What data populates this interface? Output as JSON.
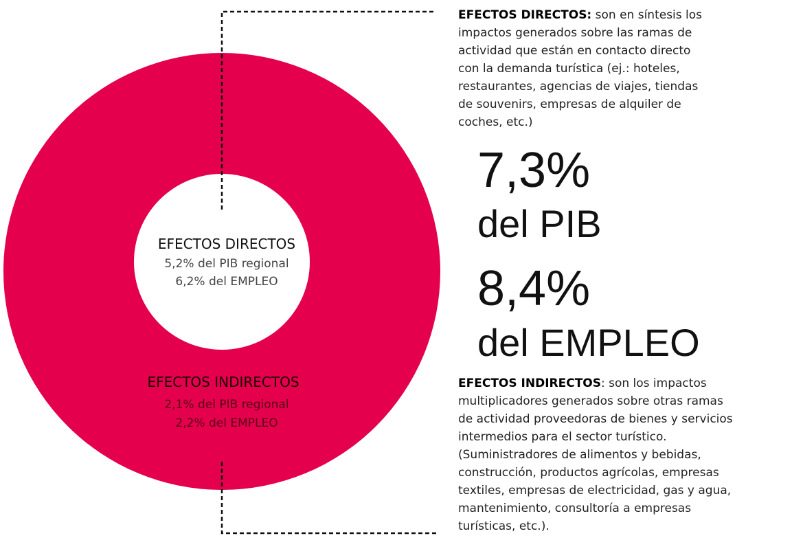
{
  "donut": {
    "inner": {
      "title": "EFECTOS DIRECTOS",
      "lines": [
        "5,2% del PIB regional",
        "6,2% del EMPLEO"
      ]
    },
    "outer": {
      "title": "EFECTOS INDIRECTOS",
      "lines": [
        "2,1% del PIB regional",
        "2,2% del EMPLEO"
      ]
    }
  },
  "direct_note": {
    "label": "EFECTOS DIRECTOS:",
    "lines": [
      " son en síntesis los",
      "impactos generados sobre las ramas de",
      "actividad que están en contacto directo",
      "con la demanda turística (ej.: hoteles,",
      "restaurantes, agencias de viajes, tiendas",
      "de souvenirs, empresas de alquiler de",
      "coches, etc.)"
    ]
  },
  "totals": [
    {
      "value": "7,3%",
      "label": "del PIB"
    },
    {
      "value": "8,4%",
      "label": "del EMPLEO"
    }
  ],
  "indirect_note": {
    "label": "EFECTOS INDIRECTOS",
    "lines": [
      ": son los impactos",
      "multiplicadores generados sobre otras ramas",
      "de actividad proveedoras de bienes y servicios",
      "intermedios para el sector turístico.",
      "(Suministradores de alimentos y bebidas,",
      "construcción, productos agrícolas, empresas",
      "textiles, empresas de electricidad, gas y agua,",
      "mantenimiento, consultoría a empresas",
      "turísticas, etc.)."
    ]
  }
}
